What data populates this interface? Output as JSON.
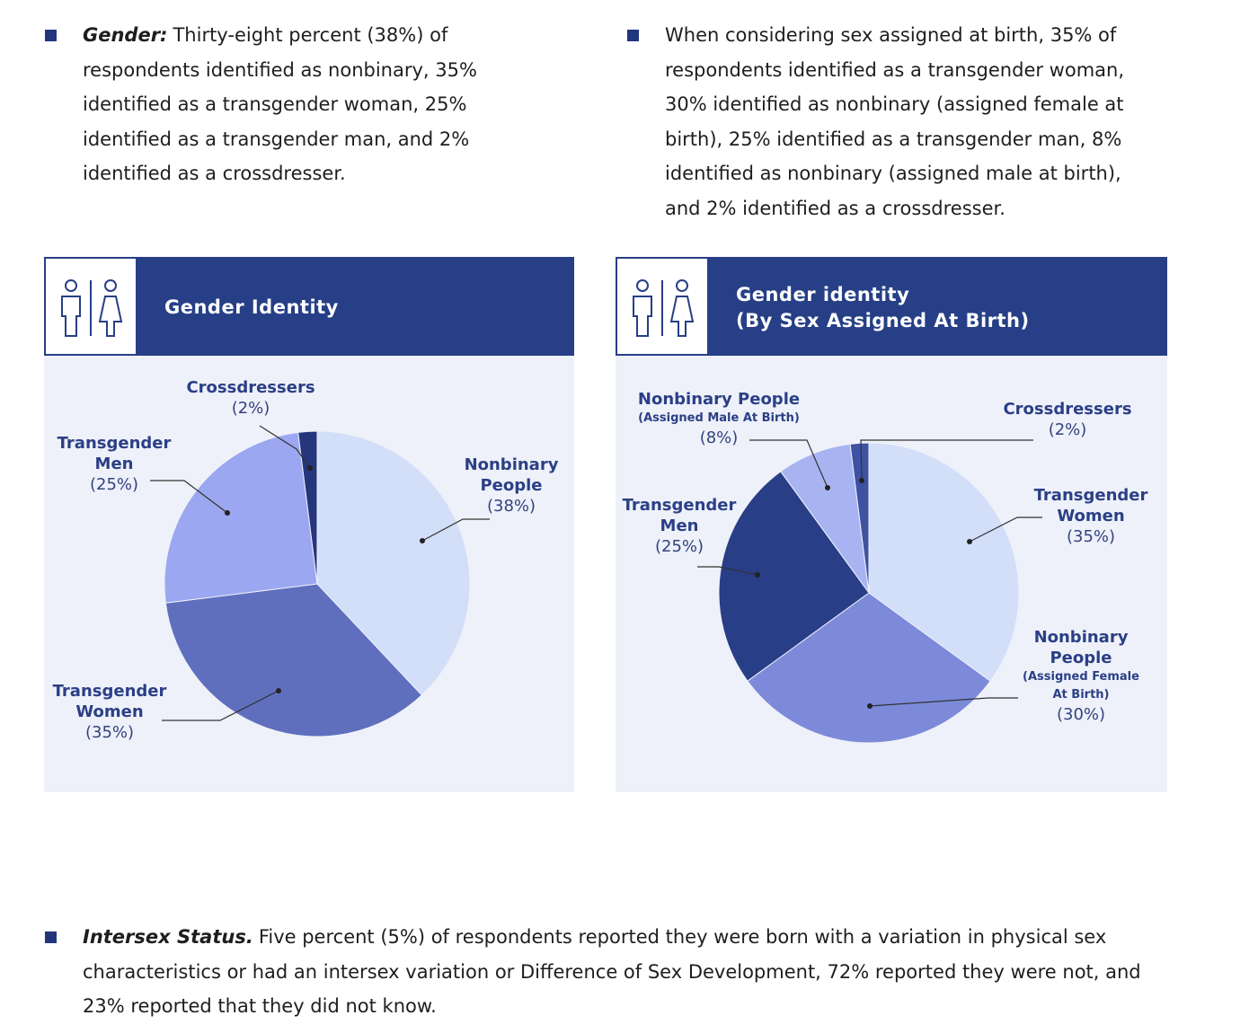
{
  "bullets": [
    {
      "lead": "Gender:",
      "text": "Thirty-eight percent (38%) of respondents identified as nonbinary, 35% identified as a transgender woman, 25% identified as a transgender man, and 2% identified as a crossdresser."
    },
    {
      "text": "When considering sex assigned at birth, 35% of respondents identified as a transgender woman, 30% identified as nonbinary (assigned female at birth), 25% identified as a transgender man, 8% identified as nonbinary (assigned male at birth), and 2% identified as a crossdresser."
    },
    {
      "lead": "Intersex Status.",
      "text": "Five percent (5%) of respondents reported they were born with a variation in physical sex characteristics or had an intersex variation or Difference of Sex Development, 72% reported they were not, and 23% reported that they did not know."
    }
  ],
  "chart_data": [
    {
      "type": "pie",
      "title": "Gender Identity",
      "categories": [
        "Nonbinary People",
        "Transgender Women",
        "Transgender Men",
        "Crossdressers"
      ],
      "values": [
        38,
        35,
        25,
        2
      ],
      "value_labels": [
        "(38%)",
        "(35%)",
        "(25%)",
        "(2%)"
      ],
      "colors": [
        "#d3def9",
        "#5f6fbe",
        "#9ba7f0",
        "#25367c"
      ]
    },
    {
      "type": "pie",
      "title": "Gender identity (By Sex Assigned At Birth)",
      "categories": [
        "Transgender Women",
        "Nonbinary People (Assigned Female At Birth)",
        "Transgender Men",
        "Nonbinary People (Assigned Male At Birth)",
        "Crossdressers"
      ],
      "values": [
        35,
        30,
        25,
        8,
        2
      ],
      "value_labels": [
        "(35%)",
        "(30%)",
        "(25%)",
        "(8%)",
        "(2%)"
      ],
      "colors": [
        "#d3def9",
        "#7c8ad9",
        "#283e86",
        "#a8b4f1",
        "#3e51a2"
      ]
    }
  ]
}
